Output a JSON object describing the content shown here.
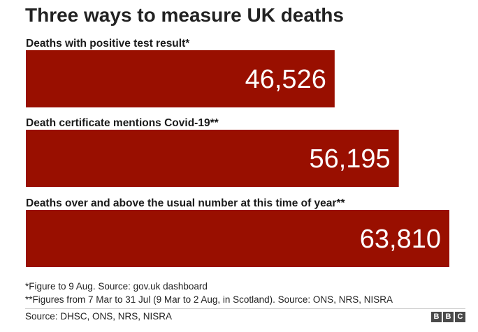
{
  "title": "Three ways to measure UK deaths",
  "chart_data": {
    "type": "bar",
    "orientation": "horizontal",
    "categories": [
      "Deaths with positive test result*",
      "Death certificate mentions Covid-19**",
      "Deaths over and above the usual number at this time of year**"
    ],
    "values": [
      46526,
      56195,
      63810
    ],
    "value_labels": [
      "46,526",
      "56,195",
      "63,810"
    ],
    "xlim": [
      0,
      63810
    ],
    "grid": false,
    "bar_color": "#990f00",
    "value_label_color": "#ffffff"
  },
  "notes": [
    "*Figure to 9 Aug. Source: gov.uk dashboard",
    "**Figures from 7 Mar to 31 Jul (9 Mar to 2 Aug, in Scotland). Source: ONS, NRS, NISRA"
  ],
  "source": "Source: DHSC, ONS, NRS, NISRA",
  "logo": [
    "B",
    "B",
    "C"
  ]
}
